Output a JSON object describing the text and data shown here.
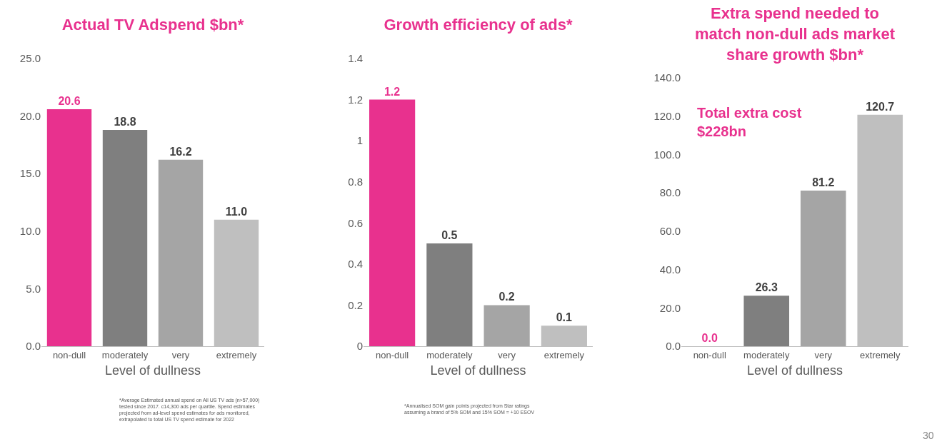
{
  "chart_data": [
    {
      "type": "bar",
      "title": "Actual TV Adspend $bn*",
      "xlabel": "Level of dullness",
      "categories": [
        "non-dull",
        "moderately",
        "very",
        "extremely"
      ],
      "values": [
        20.6,
        18.8,
        16.2,
        11.0
      ],
      "colors": [
        "#e8318e",
        "#7f7f7f",
        "#a5a5a5",
        "#bfbfbf"
      ],
      "value_labels": [
        "20.6",
        "18.8",
        "16.2",
        "11.0"
      ],
      "ylim": [
        0,
        25
      ],
      "yticks": [
        {
          "value": 0,
          "label": "0.0"
        },
        {
          "value": 5,
          "label": "5.0"
        },
        {
          "value": 10,
          "label": "10.0"
        },
        {
          "value": 15,
          "label": "15.0"
        },
        {
          "value": 20,
          "label": "20.0"
        },
        {
          "value": 25,
          "label": "25.0"
        }
      ],
      "annotations": [
        "*Average Estimated annual spend on All US TV ads (n>57,000) tested since 2017. c14,300 ads per quartile. Spend estimates projected from ad-level spend estimates for ads monitored, extrapolated to total US TV spend estimate for 2022"
      ]
    },
    {
      "type": "bar",
      "title": "Growth efficiency of ads*",
      "xlabel": "Level of dullness",
      "categories": [
        "non-dull",
        "moderately",
        "very",
        "extremely"
      ],
      "values": [
        1.2,
        0.5,
        0.2,
        0.1
      ],
      "colors": [
        "#e8318e",
        "#7f7f7f",
        "#a5a5a5",
        "#bfbfbf"
      ],
      "data_labels": true,
      "ylim": [
        0,
        1.4
      ],
      "yticks": [
        0,
        0.2,
        0.4,
        0.6,
        0.8,
        1,
        1.2,
        1.4
      ],
      "annotations": [
        "*Annualised SOM gain points projected from Star ratings assuming a brand of 5% SOM and 15% SOM = +10 ESOV"
      ]
    },
    {
      "type": "bar",
      "title": "Extra spend needed to match non-dull ads market share growth $bn*",
      "xlabel": "Level of dullness",
      "categories": [
        "non-dull",
        "moderately",
        "very",
        "extremely"
      ],
      "values": [
        0.0,
        26.3,
        81.2,
        120.7
      ],
      "colors": [
        "#e8318e",
        "#7f7f7f",
        "#a5a5a5",
        "#bfbfbf"
      ],
      "value_labels": [
        "0.0",
        "26.3",
        "81.2",
        "120.7"
      ],
      "ylim": [
        0,
        140
      ],
      "yticks": [
        {
          "value": 0,
          "label": "0.0"
        },
        {
          "value": 20,
          "label": "20.0"
        },
        {
          "value": 40,
          "label": "40.0"
        },
        {
          "value": 60,
          "label": "60.0"
        },
        {
          "value": 80,
          "label": "80.0"
        },
        {
          "value": 100,
          "label": "100.0"
        },
        {
          "value": 120,
          "label": "120.0"
        },
        {
          "value": 140,
          "label": "140.0"
        }
      ],
      "annotations": [
        "Total extra cost $228bn",
        "30"
      ]
    }
  ]
}
